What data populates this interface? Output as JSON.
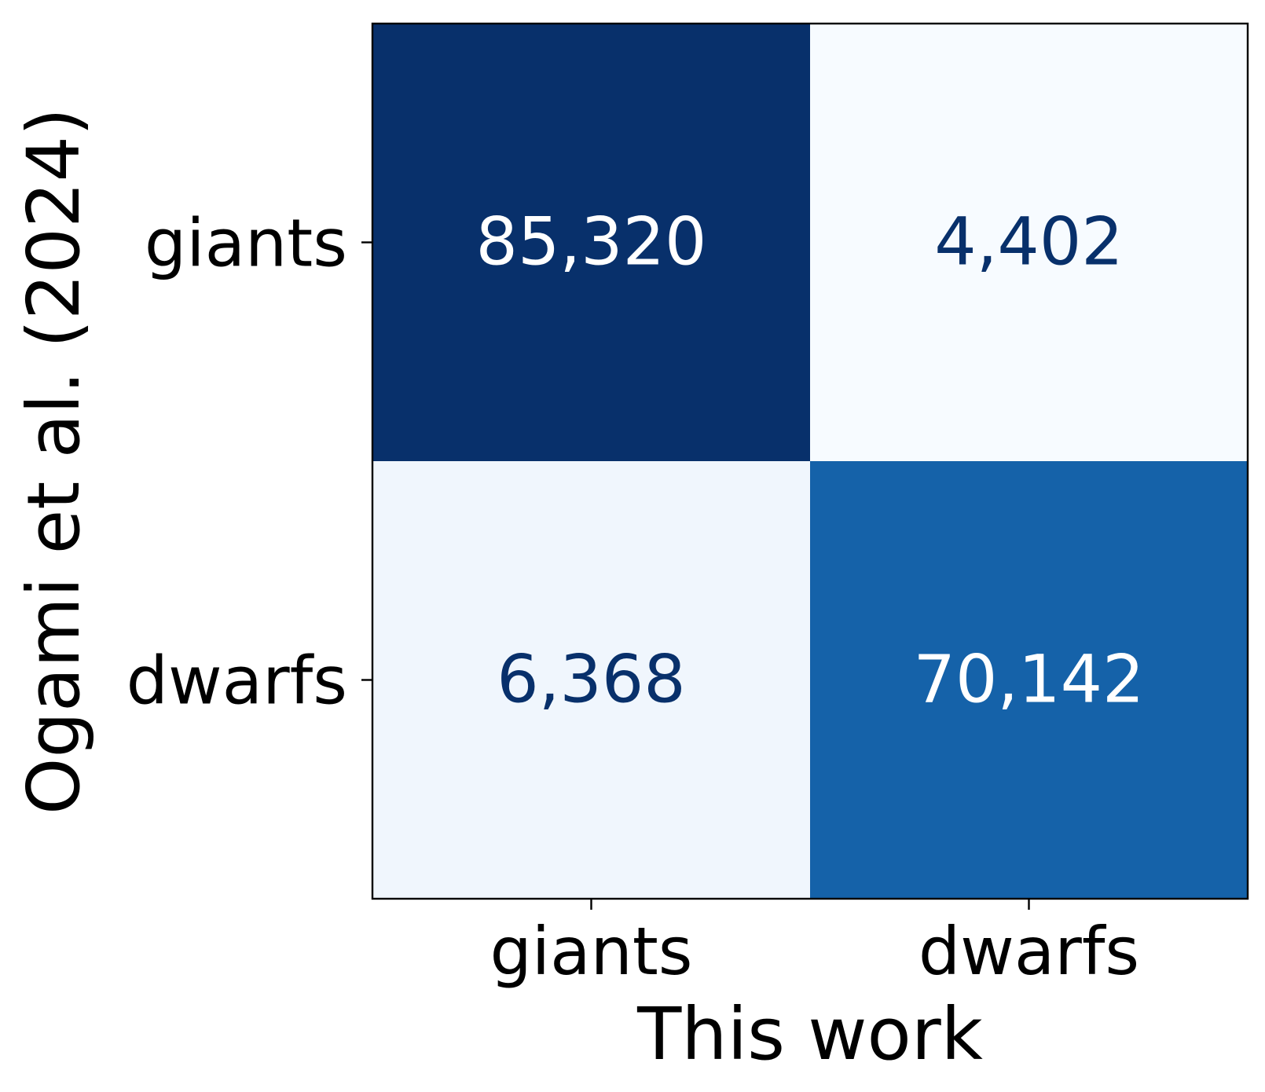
{
  "chart_data": {
    "type": "heatmap",
    "xlabel": "This work",
    "ylabel": "Ogami et al. (2024)",
    "x_categories": [
      "giants",
      "dwarfs"
    ],
    "y_categories": [
      "giants",
      "dwarfs"
    ],
    "values": [
      [
        85320,
        4402
      ],
      [
        6368,
        70142
      ]
    ],
    "value_labels": [
      [
        "85,320",
        "4,402"
      ],
      [
        "6,368",
        "70,142"
      ]
    ],
    "colormap": "Blues",
    "colorbar": false,
    "grid": false,
    "colors": {
      "cells": [
        [
          "#08306b",
          "#f7fbff"
        ],
        [
          "#f0f6fd",
          "#1562a9"
        ]
      ],
      "label_dark": "#08306b",
      "label_light": "#ffffff"
    }
  }
}
